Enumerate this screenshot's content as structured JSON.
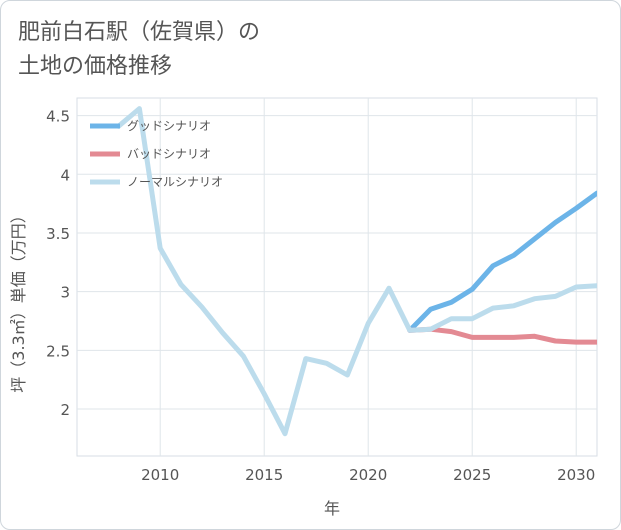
{
  "chart_data": {
    "type": "line",
    "title_line1": "肥前白石駅（佐賀県）の",
    "title_line2": "土地の価格推移",
    "xlabel": "年",
    "ylabel": "坪（3.3㎡）単価（万円）",
    "xlim": [
      2006,
      2031
    ],
    "ylim": [
      1.6,
      4.65
    ],
    "x_ticks": [
      2010,
      2015,
      2020,
      2025,
      2030
    ],
    "y_ticks": [
      2,
      2.5,
      3,
      3.5,
      4,
      4.5
    ],
    "y_tick_labels": [
      "2",
      "2.5",
      "3",
      "3.5",
      "4",
      "4.5"
    ],
    "legend_position": "top-left",
    "series": [
      {
        "name": "グッドシナリオ",
        "color": "#6cb4e8",
        "x": [
          2022,
          2023,
          2024,
          2025,
          2026,
          2027,
          2028,
          2029,
          2030,
          2031
        ],
        "values": [
          2.67,
          2.85,
          2.91,
          3.02,
          3.22,
          3.31,
          3.45,
          3.59,
          3.71,
          3.84
        ]
      },
      {
        "name": "バッドシナリオ",
        "color": "#e38a93",
        "x": [
          2022,
          2023,
          2024,
          2025,
          2026,
          2027,
          2028,
          2029,
          2030,
          2031
        ],
        "values": [
          2.67,
          2.68,
          2.66,
          2.61,
          2.61,
          2.61,
          2.62,
          2.58,
          2.57,
          2.57
        ]
      },
      {
        "name": "ノーマルシナリオ",
        "color": "#bcdcec",
        "x": [
          2008,
          2009,
          2010,
          2011,
          2012,
          2013,
          2014,
          2015,
          2016,
          2017,
          2018,
          2019,
          2020,
          2021,
          2022,
          2023,
          2024,
          2025,
          2026,
          2027,
          2028,
          2029,
          2030,
          2031
        ],
        "values": [
          4.41,
          4.56,
          3.37,
          3.06,
          2.87,
          2.65,
          2.45,
          2.13,
          1.79,
          2.43,
          2.39,
          2.29,
          2.73,
          3.03,
          2.67,
          2.68,
          2.77,
          2.77,
          2.86,
          2.88,
          2.94,
          2.96,
          3.04,
          3.05
        ]
      }
    ]
  }
}
